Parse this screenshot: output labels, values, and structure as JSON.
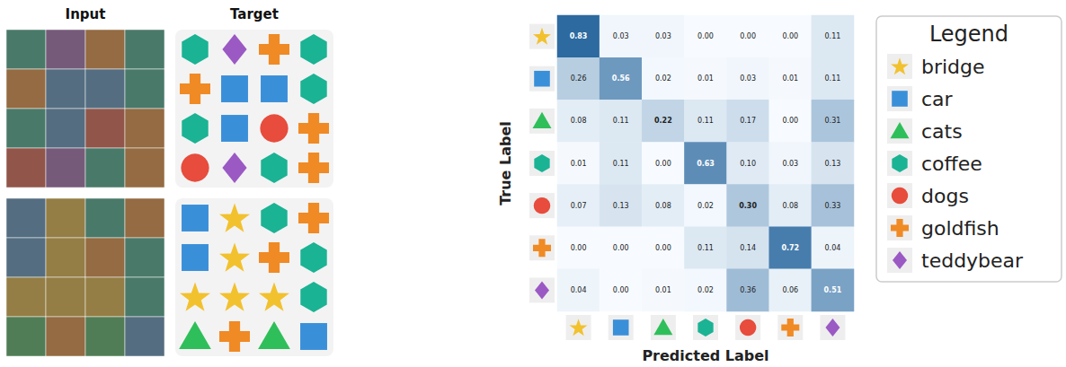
{
  "chart_data": {
    "type": "heatmap",
    "x_label": "Predicted Label",
    "y_label": "True Label",
    "legend_title": "Legend",
    "legend": "right",
    "data_labels": true,
    "tick_labels": false,
    "categories": [
      "bridge",
      "car",
      "cats",
      "coffee",
      "dogs",
      "goldfish",
      "teddybear"
    ],
    "series": [
      {
        "name": "bridge",
        "color": "#f2c12e",
        "marker": "star",
        "values": [
          0.83,
          0.03,
          0.03,
          0.0,
          0.0,
          0.0,
          0.11
        ],
        "value_labels": [
          "0.83",
          "0.03",
          "0.03",
          "0.00",
          "0.00",
          "0.00",
          "0.11"
        ]
      },
      {
        "name": "car",
        "color": "#3a8fd9",
        "marker": "square",
        "values": [
          0.26,
          0.56,
          0.02,
          0.01,
          0.03,
          0.01,
          0.11
        ],
        "value_labels": [
          "0.26",
          "0.56",
          "0.02",
          "0.01",
          "0.03",
          "0.01",
          "0.11"
        ]
      },
      {
        "name": "cats",
        "color": "#2fbf5a",
        "marker": "triangle",
        "values": [
          0.08,
          0.11,
          0.22,
          0.11,
          0.17,
          0.0,
          0.31
        ],
        "value_labels": [
          "0.08",
          "0.11",
          "0.22",
          "0.11",
          "0.17",
          "0.00",
          "0.31"
        ]
      },
      {
        "name": "coffee",
        "color": "#1ab394",
        "marker": "hexagon",
        "values": [
          0.01,
          0.11,
          0.0,
          0.63,
          0.1,
          0.03,
          0.13
        ],
        "value_labels": [
          "0.01",
          "0.11",
          "0.00",
          "0.63",
          "0.10",
          "0.03",
          "0.13"
        ]
      },
      {
        "name": "dogs",
        "color": "#e74c3c",
        "marker": "circle",
        "values": [
          0.07,
          0.13,
          0.08,
          0.02,
          0.3,
          0.08,
          0.33
        ],
        "value_labels": [
          "0.07",
          "0.13",
          "0.08",
          "0.02",
          "0.30",
          "0.08",
          "0.33"
        ]
      },
      {
        "name": "goldfish",
        "color": "#f08a24",
        "marker": "cross",
        "values": [
          0.0,
          0.0,
          0.0,
          0.11,
          0.14,
          0.72,
          0.04
        ],
        "value_labels": [
          "0.00",
          "0.00",
          "0.00",
          "0.11",
          "0.14",
          "0.72",
          "0.04"
        ]
      },
      {
        "name": "teddybear",
        "color": "#9b59c4",
        "marker": "diamond",
        "values": [
          0.04,
          0.0,
          0.01,
          0.02,
          0.36,
          0.06,
          0.51
        ],
        "value_labels": [
          "0.04",
          "0.00",
          "0.01",
          "0.02",
          "0.36",
          "0.06",
          "0.51"
        ]
      }
    ]
  },
  "examples": {
    "column_titles": [
      "Input",
      "Target"
    ],
    "grids": [
      [
        [
          "coffee",
          "teddybear",
          "goldfish",
          "coffee"
        ],
        [
          "goldfish",
          "car",
          "car",
          "coffee"
        ],
        [
          "coffee",
          "car",
          "dogs",
          "goldfish"
        ],
        [
          "dogs",
          "teddybear",
          "coffee",
          "goldfish"
        ]
      ],
      [
        [
          "car",
          "bridge",
          "coffee",
          "goldfish"
        ],
        [
          "car",
          "bridge",
          "goldfish",
          "coffee"
        ],
        [
          "bridge",
          "bridge",
          "bridge",
          "coffee"
        ],
        [
          "cats",
          "goldfish",
          "cats",
          "car"
        ]
      ]
    ]
  }
}
